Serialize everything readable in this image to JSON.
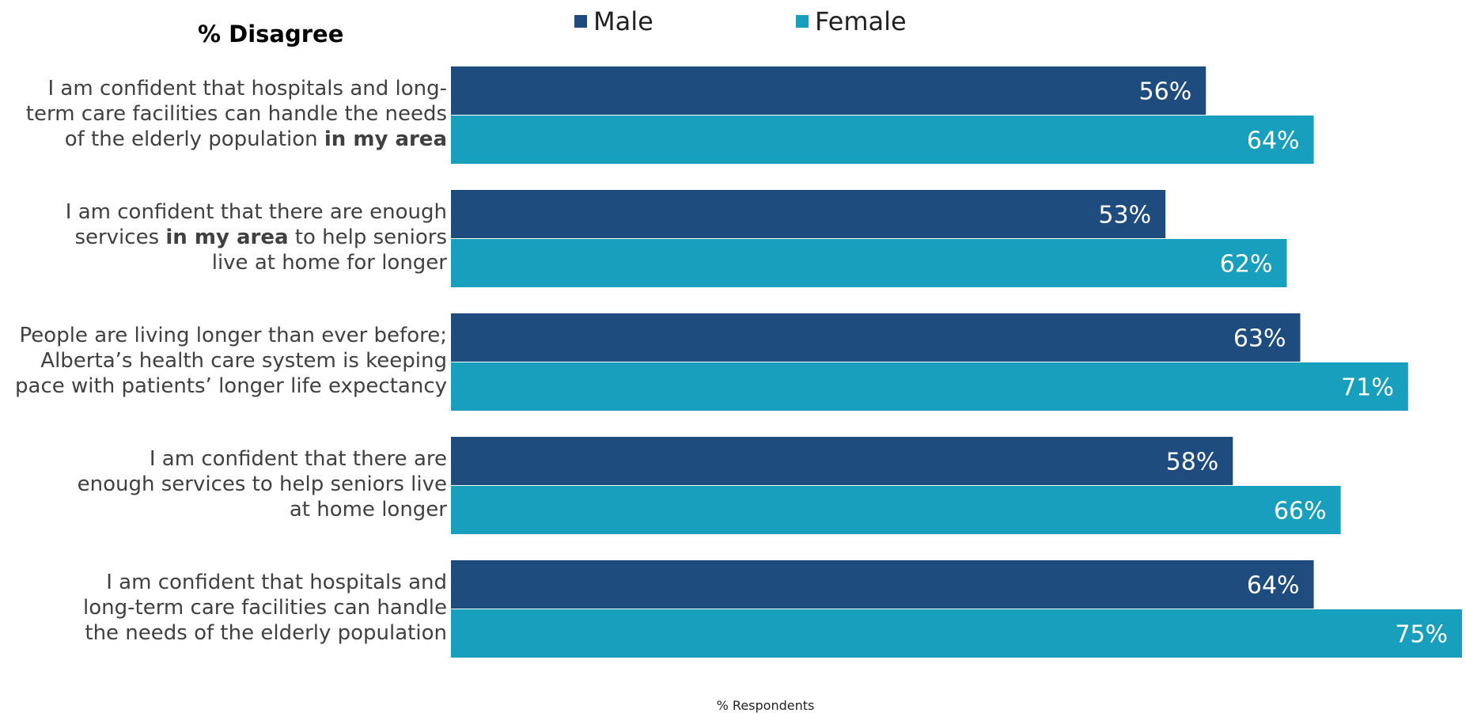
{
  "panel_title": "% Disagree",
  "chart_data": {
    "type": "bar",
    "orientation": "horizontal",
    "xlabel": "% Respondents",
    "xlim": [
      0,
      75
    ],
    "legend_position": "top",
    "grid": false,
    "categories": [
      "I am confident that hospitals and long-term care facilities can handle the needs of the elderly population in my area",
      "I am confident that there are enough services in my area to help seniors live at home for longer",
      "People are living longer than ever before; Alberta’s health care system is keeping pace with patients’ longer life expectancy",
      "I am confident that there are enough services to help seniors live at home longer",
      "I am confident that hospitals and long-term care facilities can handle the needs of the elderly population"
    ],
    "series": [
      {
        "name": "Male",
        "color": "#1f4c7f",
        "values": [
          56,
          53,
          63,
          58,
          64
        ],
        "labels": [
          "56%",
          "53%",
          "63%",
          "58%",
          "64%"
        ]
      },
      {
        "name": "Female",
        "color": "#179fbd",
        "values": [
          64,
          62,
          71,
          66,
          75
        ],
        "labels": [
          "64%",
          "62%",
          "71%",
          "66%",
          "75%"
        ]
      }
    ],
    "category_label_lines": [
      [
        [
          {
            "t": "I am confident that hospitals and long-",
            "b": false
          }
        ],
        [
          {
            "t": "term care facilities can handle the needs",
            "b": false
          }
        ],
        [
          {
            "t": "of the elderly population ",
            "b": false
          },
          {
            "t": "in my area",
            "b": true
          }
        ]
      ],
      [
        [
          {
            "t": "I am confident that there are enough",
            "b": false
          }
        ],
        [
          {
            "t": "services ",
            "b": false
          },
          {
            "t": "in my area",
            "b": true
          },
          {
            "t": " to help seniors",
            "b": false
          }
        ],
        [
          {
            "t": "live at home for longer",
            "b": false
          }
        ]
      ],
      [
        [
          {
            "t": "People are living longer than ever before;",
            "b": false
          }
        ],
        [
          {
            "t": "Alberta’s health care system is keeping",
            "b": false
          }
        ],
        [
          {
            "t": "pace with patients’ longer life expectancy",
            "b": false
          }
        ]
      ],
      [
        [
          {
            "t": "I am confident that there are",
            "b": false
          }
        ],
        [
          {
            "t": "enough services to help seniors live",
            "b": false
          }
        ],
        [
          {
            "t": "at home longer",
            "b": false
          }
        ]
      ],
      [
        [
          {
            "t": "I am confident that hospitals and",
            "b": false
          }
        ],
        [
          {
            "t": "long-term care facilities can handle",
            "b": false
          }
        ],
        [
          {
            "t": "the needs of the elderly population",
            "b": false
          }
        ]
      ]
    ]
  }
}
